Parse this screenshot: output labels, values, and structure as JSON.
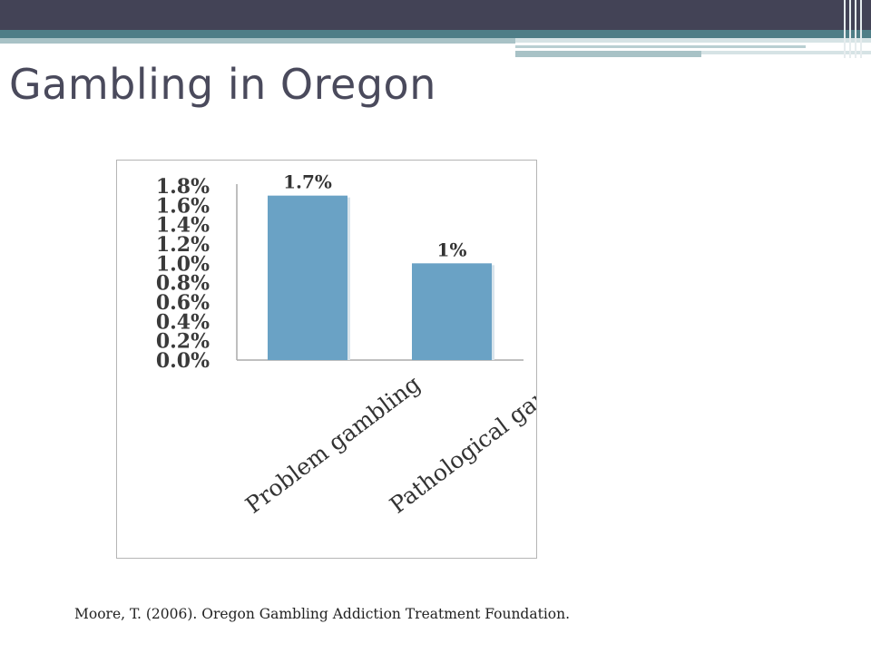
{
  "slide": {
    "title": "Gambling in Oregon",
    "citation": "Moore, T. (2006). Oregon Gambling Addiction Treatment Foundation."
  },
  "colors": {
    "bar": "#6aa2c5",
    "axis": "#aaaaaa",
    "header_dark": "#434356",
    "header_teal": "#4f7e87"
  },
  "chart_data": {
    "type": "bar",
    "categories": [
      "Problem gambling",
      "Pathological gambling"
    ],
    "values": [
      1.7,
      1.0
    ],
    "data_labels": [
      "1.7%",
      "1%"
    ],
    "y_ticks": [
      0.0,
      0.2,
      0.4,
      0.6,
      0.8,
      1.0,
      1.2,
      1.4,
      1.6,
      1.8
    ],
    "y_tick_labels": [
      "0.0%",
      "0.2%",
      "0.4%",
      "0.6%",
      "0.8%",
      "1.0%",
      "1.2%",
      "1.4%",
      "1.6%",
      "1.8%"
    ],
    "ylim": [
      0,
      1.8
    ],
    "title": "",
    "xlabel": "",
    "ylabel": "",
    "grid": false,
    "legend": "none"
  }
}
